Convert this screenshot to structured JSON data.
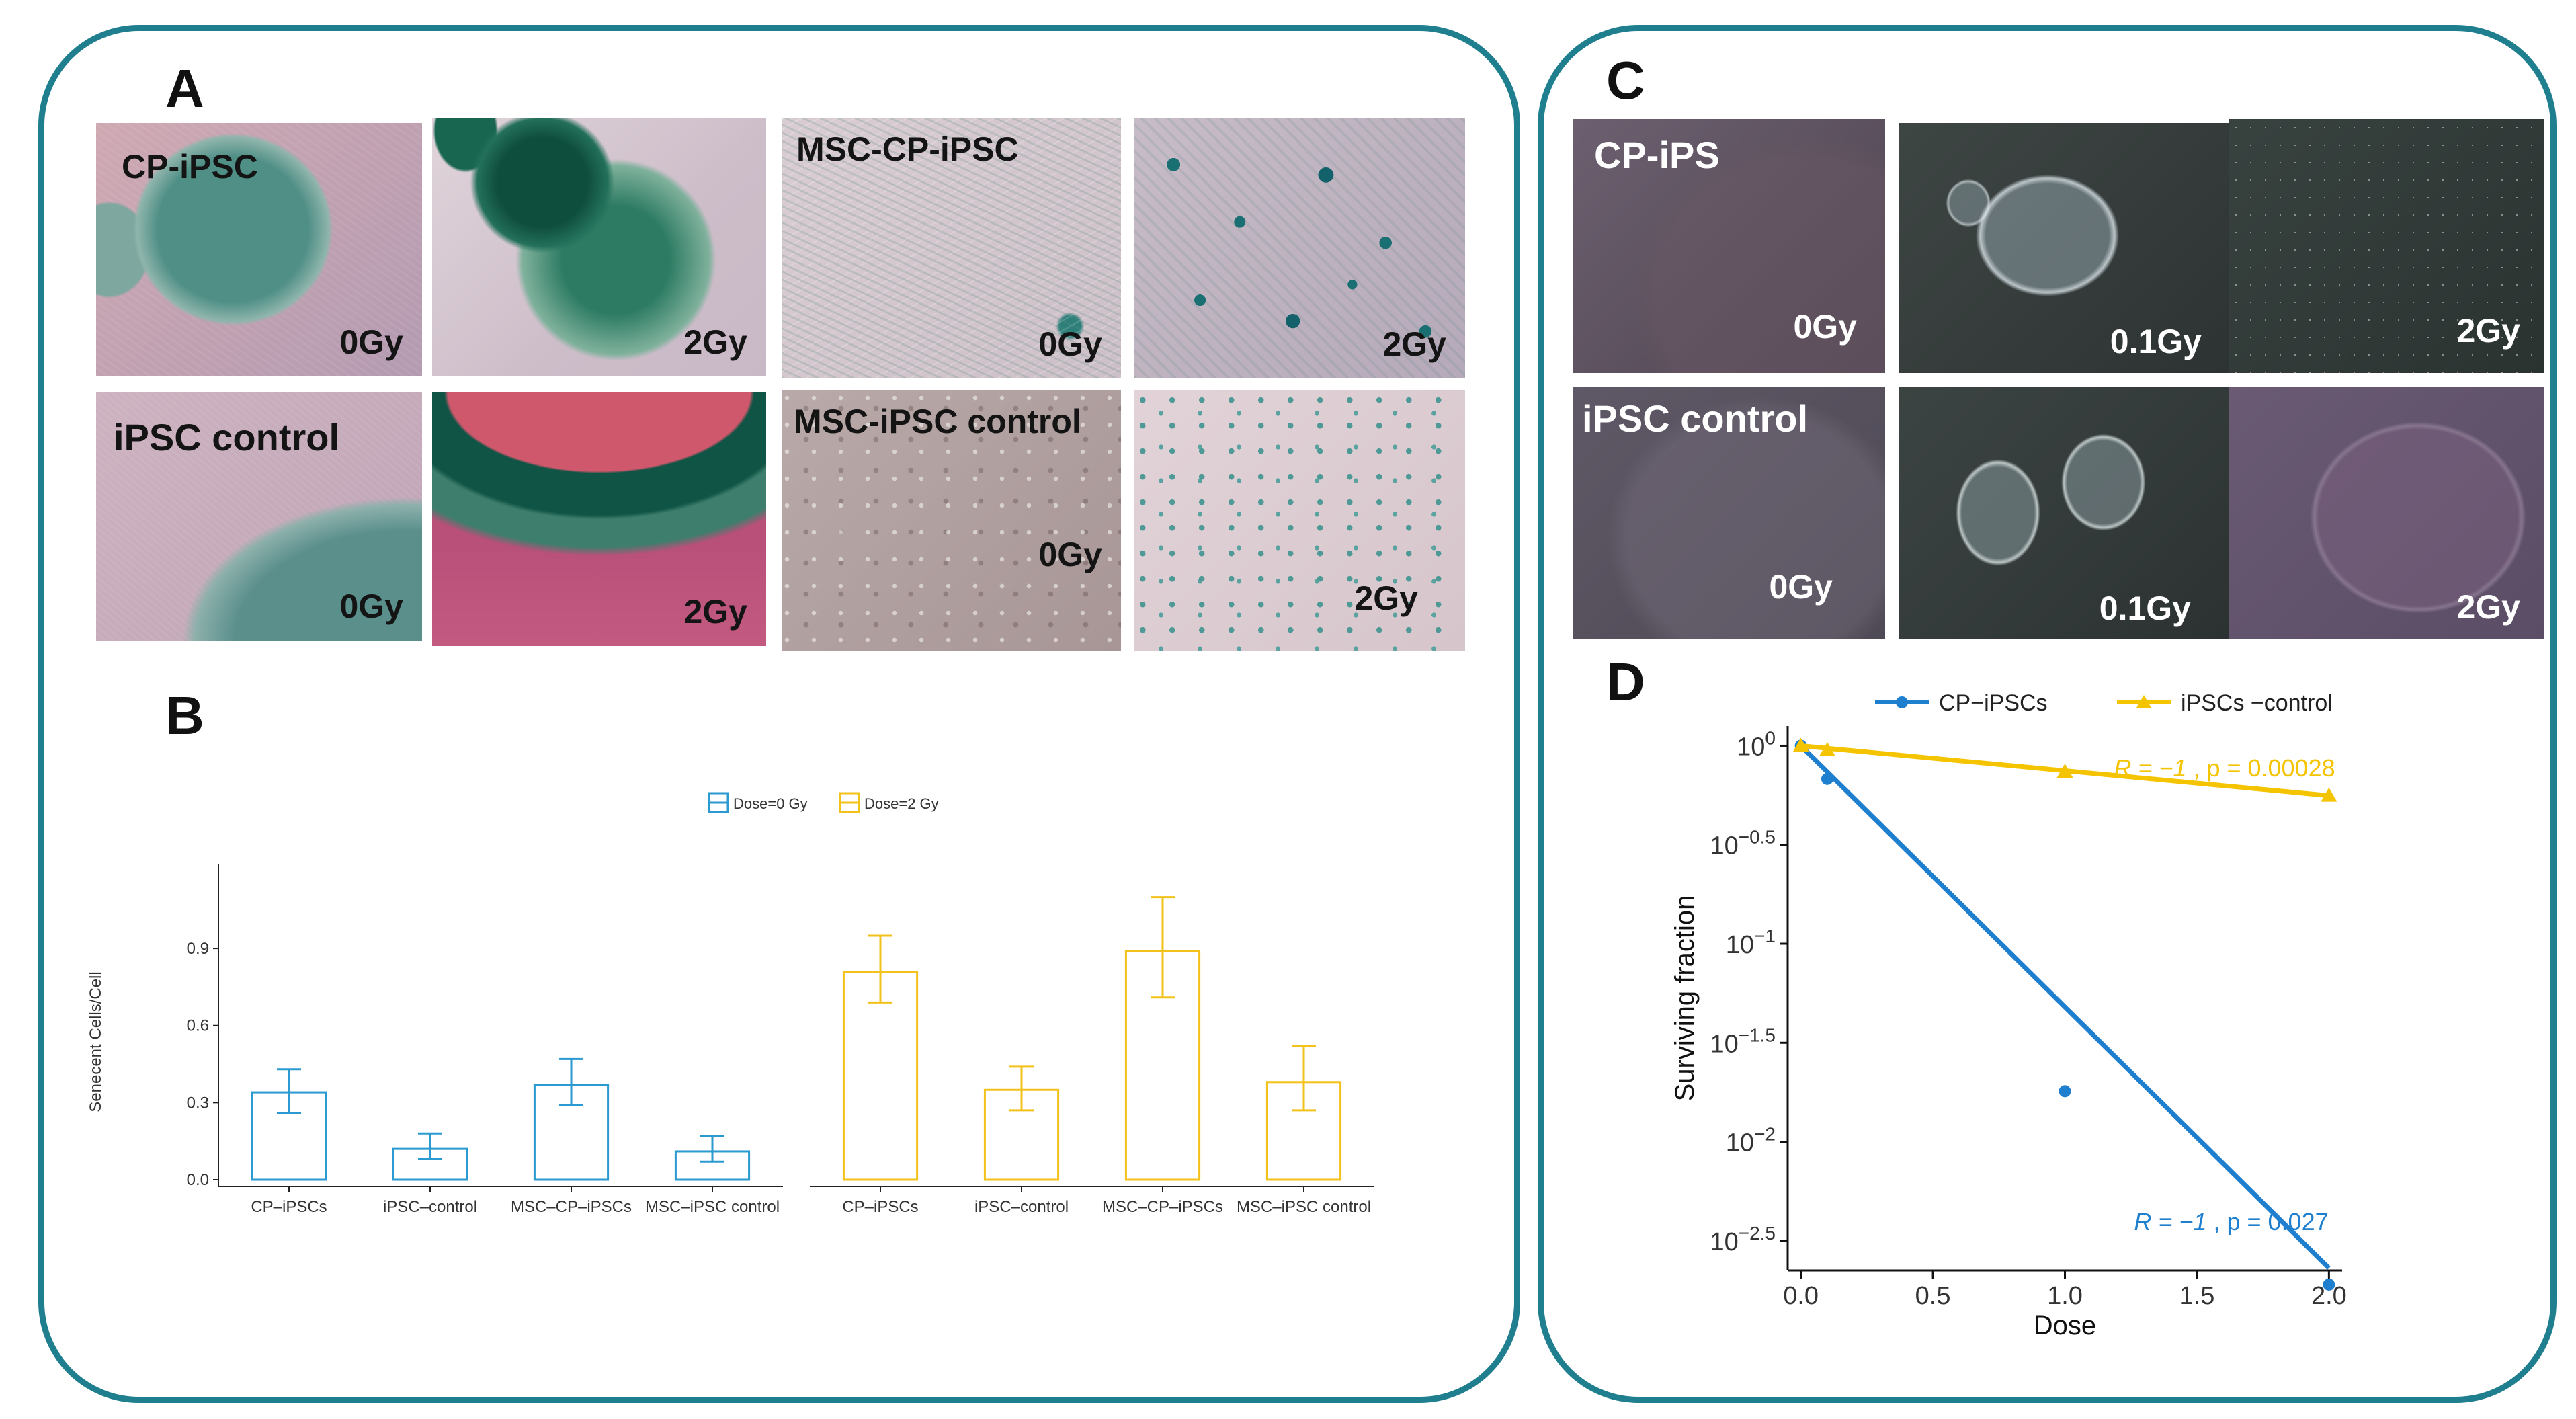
{
  "panels": {
    "A": {
      "letter": "A",
      "images": [
        {
          "group_label": "CP-iPSC",
          "dose_label": "0Gy"
        },
        {
          "group_label": "",
          "dose_label": "2Gy"
        },
        {
          "group_label": "MSC-CP-iPSC",
          "dose_label": "0Gy"
        },
        {
          "group_label": "",
          "dose_label": "2Gy"
        },
        {
          "group_label": "iPSC control",
          "dose_label": "0Gy"
        },
        {
          "group_label": "",
          "dose_label": "2Gy"
        },
        {
          "group_label": "MSC-iPSC control",
          "dose_label": "0Gy"
        },
        {
          "group_label": "",
          "dose_label": "2Gy"
        }
      ]
    },
    "B": {
      "letter": "B"
    },
    "C": {
      "letter": "C",
      "images": [
        {
          "group_label": "CP-iPS",
          "dose_label": "0Gy"
        },
        {
          "group_label": "",
          "dose_label": "0.1Gy"
        },
        {
          "group_label": "",
          "dose_label": "2Gy"
        },
        {
          "group_label": "iPSC control",
          "dose_label": "0Gy"
        },
        {
          "group_label": "",
          "dose_label": "0.1Gy"
        },
        {
          "group_label": "",
          "dose_label": "2Gy"
        }
      ]
    },
    "D": {
      "letter": "D"
    }
  },
  "chart_data": [
    {
      "id": "B",
      "type": "bar",
      "ylabel": "Senecent Cells/Cell",
      "xlabel": "",
      "ylim": [
        0,
        1.23
      ],
      "yticks": [
        "0.0",
        "0.3",
        "0.6",
        "0.9"
      ],
      "legend": {
        "placement": "top",
        "entries": [
          {
            "label": "Dose=0 Gy",
            "color": "#2a9ad0"
          },
          {
            "label": "Dose=2 Gy",
            "color": "#f2c21b"
          }
        ]
      },
      "grid": false,
      "series": [
        {
          "name": "Dose=0 Gy",
          "color": "#2a9ad0",
          "categories": [
            "CP–iPSCs",
            "iPSC–control",
            "MSC–CP–iPSCs",
            "MSC–iPSC control"
          ],
          "values": [
            0.34,
            0.12,
            0.37,
            0.11
          ],
          "err_low": [
            0.26,
            0.08,
            0.29,
            0.07
          ],
          "err_high": [
            0.43,
            0.18,
            0.47,
            0.17
          ]
        },
        {
          "name": "Dose=2 Gy",
          "color": "#f2c21b",
          "categories": [
            "CP–iPSCs",
            "iPSC–control",
            "MSC–CP–iPSCs",
            "MSC–iPSC control"
          ],
          "values": [
            0.81,
            0.35,
            0.89,
            0.38
          ],
          "err_low": [
            0.69,
            0.27,
            0.71,
            0.27
          ],
          "err_high": [
            0.95,
            0.44,
            1.1,
            0.52
          ]
        }
      ]
    },
    {
      "id": "D",
      "type": "line",
      "xlabel": "Dose",
      "ylabel": "Surviving fraction",
      "xlim": [
        -0.05,
        2.05
      ],
      "xticks": [
        "0.0",
        "0.5",
        "1.0",
        "1.5",
        "2.0"
      ],
      "y_scale": "log10",
      "ylim_log10": [
        -2.65,
        0.1
      ],
      "yticks": [
        {
          "base": "10",
          "exp": "0"
        },
        {
          "base": "10",
          "exp": "−0.5"
        },
        {
          "base": "10",
          "exp": "−1"
        },
        {
          "base": "10",
          "exp": "−1.5"
        },
        {
          "base": "10",
          "exp": "−2"
        },
        {
          "base": "10",
          "exp": "−2.5"
        }
      ],
      "legend": {
        "placement": "top",
        "entries": [
          {
            "label": "CP−iPSCs",
            "color": "#1f7fcf"
          },
          {
            "label": "iPSCs −control",
            "color": "#f5c400"
          }
        ]
      },
      "grid": false,
      "series": [
        {
          "name": "CP−iPSCs",
          "color": "#1f7fcf",
          "marker": "circle",
          "x": [
            0,
            0.1,
            1,
            2
          ],
          "y": [
            1,
            0.68,
            0.018,
            0.0019
          ],
          "fit_line": {
            "x": [
              0,
              2
            ],
            "y": [
              1,
              0.0023
            ]
          },
          "annotation": {
            "R": "R = −1",
            "p": ", p = 0.027"
          }
        },
        {
          "name": "iPSCs −control",
          "color": "#f5c400",
          "marker": "triangle",
          "x": [
            0,
            0.1,
            1,
            2
          ],
          "y": [
            1,
            0.95,
            0.74,
            0.56
          ],
          "fit_line": {
            "x": [
              0,
              2
            ],
            "y": [
              1,
              0.56
            ]
          },
          "annotation": {
            "R": "R = −1",
            "p": ", p = 0.00028"
          }
        }
      ]
    }
  ]
}
